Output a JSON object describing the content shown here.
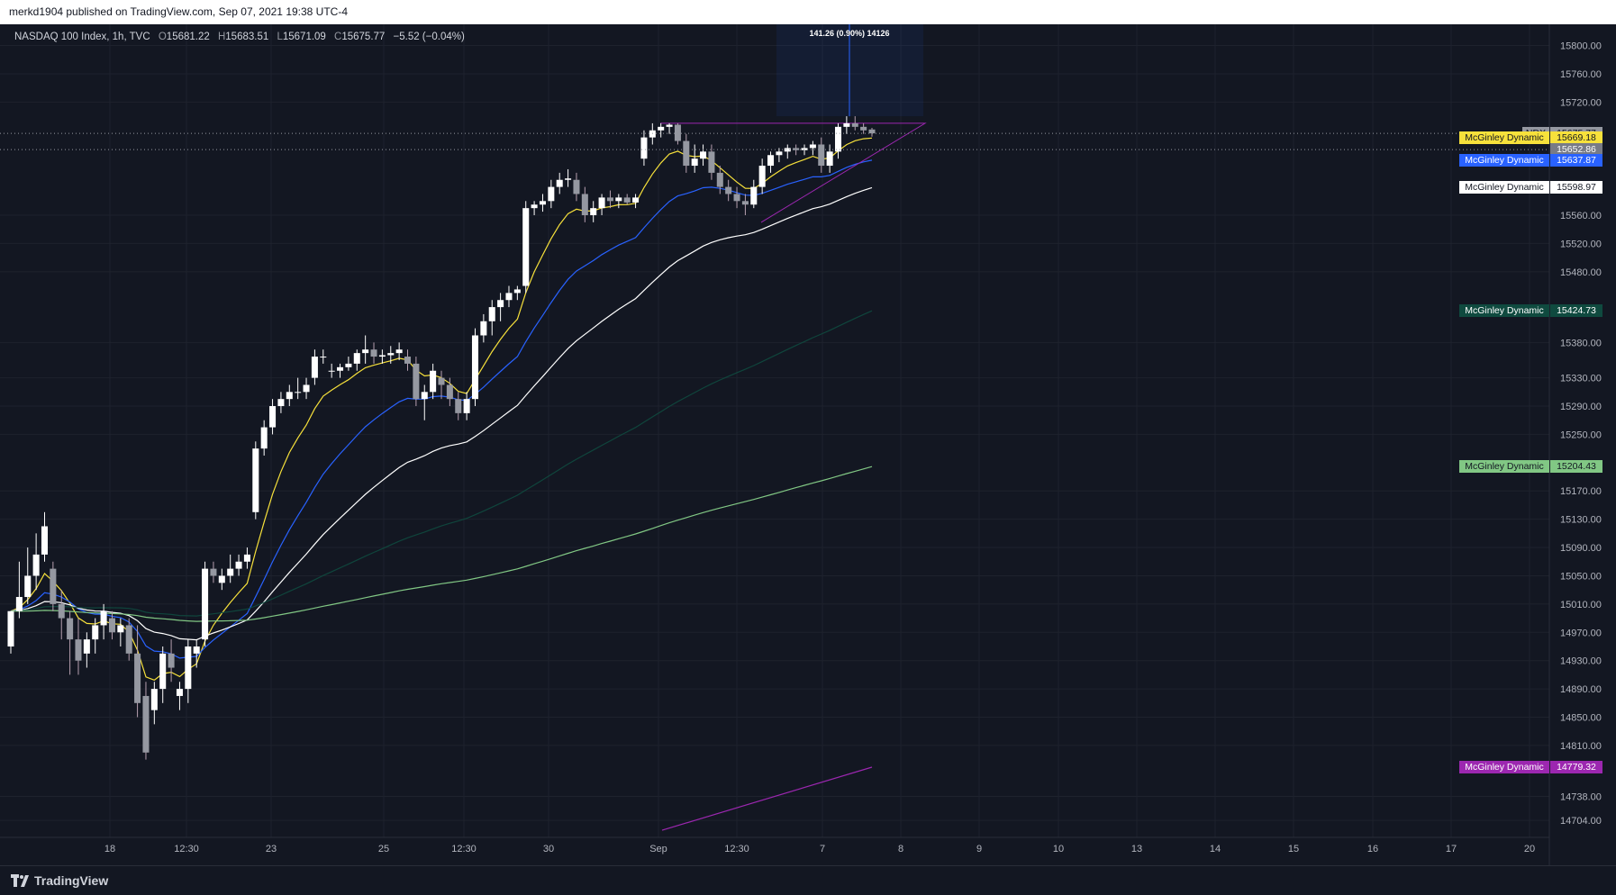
{
  "header": {
    "published_text": "merkd1904 published on TradingView.com, Sep 07, 2021 19:38 UTC-4"
  },
  "legend": {
    "symbol": "NASDAQ 100 Index, 1h, TVC",
    "open_label": "O",
    "open": "15681.22",
    "high_label": "H",
    "high": "15683.51",
    "low_label": "L",
    "low": "15671.09",
    "close_label": "C",
    "close": "15675.77",
    "change": "−5.52 (−0.04%)"
  },
  "measure_label": "141.26 (0.90%) 14126",
  "price_axis": {
    "ticks": [
      "15800.00",
      "15760.00",
      "15720.00",
      "15560.00",
      "15520.00",
      "15480.00",
      "15380.00",
      "15330.00",
      "15290.00",
      "15250.00",
      "15170.00",
      "15130.00",
      "15090.00",
      "15050.00",
      "15010.00",
      "14970.00",
      "14930.00",
      "14890.00",
      "14850.00",
      "14810.00",
      "14738.00",
      "14704.00"
    ]
  },
  "time_axis": {
    "labels": [
      "18",
      "12:30",
      "23",
      "25",
      "12:30",
      "30",
      "Sep",
      "12:30",
      "7",
      "8",
      "9",
      "10",
      "13",
      "14",
      "15",
      "16",
      "17",
      "20"
    ]
  },
  "price_labels": [
    {
      "name": "NDX",
      "value": "15675.77",
      "color": "#9598a1",
      "text_color": "#131722"
    },
    {
      "name": "McGinley Dynamic",
      "value": "15669.18",
      "color": "#f7e13b",
      "text_color": "#131722"
    },
    {
      "name": "",
      "value": "15652.86",
      "color": "#787b86",
      "text_color": "#ffffff"
    },
    {
      "name": "McGinley Dynamic",
      "value": "15637.87",
      "color": "#2962ff",
      "text_color": "#ffffff"
    },
    {
      "name": "McGinley Dynamic",
      "value": "15598.97",
      "color": "#ffffff",
      "text_color": "#131722"
    },
    {
      "name": "McGinley Dynamic",
      "value": "15424.73",
      "color": "#0f4a3f",
      "text_color": "#ffffff"
    },
    {
      "name": "McGinley Dynamic",
      "value": "15204.43",
      "color": "#81c784",
      "text_color": "#131722"
    },
    {
      "name": "McGinley Dynamic",
      "value": "14779.32",
      "color": "#9c27b0",
      "text_color": "#ffffff"
    }
  ],
  "chart_data": {
    "type": "candlestick",
    "symbol": "NDX",
    "interval": "1h",
    "y_range": [
      14680,
      15830
    ],
    "candles": [
      [
        14950,
        15000,
        14940,
        15000
      ],
      [
        15000,
        15070,
        14990,
        15020
      ],
      [
        15020,
        15090,
        15010,
        15050
      ],
      [
        15050,
        15110,
        15030,
        15080
      ],
      [
        15080,
        15140,
        15070,
        15120
      ],
      [
        15060,
        15070,
        15000,
        15010
      ],
      [
        15010,
        15030,
        14960,
        14990
      ],
      [
        14990,
        15000,
        14910,
        14960
      ],
      [
        14960,
        14990,
        14910,
        14930
      ],
      [
        14940,
        14970,
        14920,
        14960
      ],
      [
        14960,
        14990,
        14940,
        14980
      ],
      [
        14980,
        15010,
        14960,
        15000
      ],
      [
        14990,
        15000,
        14960,
        14970
      ],
      [
        14970,
        14990,
        14950,
        14980
      ],
      [
        14980,
        14990,
        14930,
        14940
      ],
      [
        14940,
        14980,
        14850,
        14870
      ],
      [
        14880,
        14900,
        14790,
        14800
      ],
      [
        14860,
        14900,
        14840,
        14890
      ],
      [
        14890,
        14950,
        14870,
        14940
      ],
      [
        14940,
        14960,
        14900,
        14920
      ],
      [
        14880,
        14900,
        14860,
        14890
      ],
      [
        14890,
        14960,
        14870,
        14950
      ],
      [
        14940,
        14960,
        14920,
        14950
      ],
      [
        14960,
        15070,
        14950,
        15060
      ],
      [
        15060,
        15070,
        15040,
        15050
      ],
      [
        15040,
        15060,
        15030,
        15050
      ],
      [
        15050,
        15080,
        15040,
        15060
      ],
      [
        15060,
        15080,
        15050,
        15070
      ],
      [
        15070,
        15090,
        15060,
        15080
      ],
      [
        15140,
        15240,
        15130,
        15230
      ],
      [
        15230,
        15270,
        15220,
        15260
      ],
      [
        15260,
        15300,
        15250,
        15290
      ],
      [
        15290,
        15310,
        15280,
        15300
      ],
      [
        15300,
        15320,
        15290,
        15310
      ],
      [
        15310,
        15330,
        15300,
        15310
      ],
      [
        15310,
        15330,
        15300,
        15320
      ],
      [
        15330,
        15370,
        15320,
        15360
      ],
      [
        15360,
        15370,
        15350,
        15360
      ],
      [
        15340,
        15350,
        15330,
        15340
      ],
      [
        15340,
        15350,
        15330,
        15345
      ],
      [
        15345,
        15360,
        15340,
        15350
      ],
      [
        15350,
        15370,
        15340,
        15365
      ],
      [
        15365,
        15390,
        15350,
        15370
      ],
      [
        15370,
        15380,
        15350,
        15360
      ],
      [
        15360,
        15370,
        15350,
        15362
      ],
      [
        15362,
        15375,
        15350,
        15365
      ],
      [
        15365,
        15380,
        15355,
        15370
      ],
      [
        15360,
        15370,
        15340,
        15350
      ],
      [
        15350,
        15360,
        15290,
        15300
      ],
      [
        15300,
        15320,
        15270,
        15310
      ],
      [
        15310,
        15350,
        15300,
        15340
      ],
      [
        15330,
        15340,
        15300,
        15320
      ],
      [
        15320,
        15330,
        15290,
        15300
      ],
      [
        15300,
        15310,
        15270,
        15280
      ],
      [
        15280,
        15310,
        15270,
        15300
      ],
      [
        15300,
        15400,
        15290,
        15390
      ],
      [
        15390,
        15420,
        15380,
        15410
      ],
      [
        15410,
        15440,
        15390,
        15430
      ],
      [
        15430,
        15450,
        15410,
        15440
      ],
      [
        15440,
        15460,
        15430,
        15450
      ],
      [
        15450,
        15460,
        15440,
        15455
      ],
      [
        15460,
        15580,
        15450,
        15570
      ],
      [
        15570,
        15580,
        15560,
        15575
      ],
      [
        15575,
        15590,
        15565,
        15580
      ],
      [
        15580,
        15610,
        15570,
        15600
      ],
      [
        15600,
        15620,
        15590,
        15610
      ],
      [
        15610,
        15625,
        15600,
        15612
      ],
      [
        15610,
        15620,
        15580,
        15590
      ],
      [
        15590,
        15600,
        15550,
        15560
      ],
      [
        15560,
        15580,
        15550,
        15570
      ],
      [
        15570,
        15590,
        15560,
        15585
      ],
      [
        15585,
        15595,
        15570,
        15580
      ],
      [
        15580,
        15590,
        15570,
        15585
      ],
      [
        15585,
        15590,
        15575,
        15578
      ],
      [
        15578,
        15590,
        15570,
        15585
      ],
      [
        15640,
        15680,
        15630,
        15670
      ],
      [
        15670,
        15690,
        15660,
        15680
      ],
      [
        15680,
        15690,
        15670,
        15685
      ],
      [
        15685,
        15690,
        15675,
        15688
      ],
      [
        15688,
        15690,
        15660,
        15665
      ],
      [
        15665,
        15675,
        15620,
        15630
      ],
      [
        15630,
        15660,
        15620,
        15640
      ],
      [
        15640,
        15660,
        15630,
        15650
      ],
      [
        15650,
        15660,
        15610,
        15620
      ],
      [
        15620,
        15630,
        15590,
        15600
      ],
      [
        15600,
        15610,
        15580,
        15590
      ],
      [
        15590,
        15600,
        15570,
        15580
      ],
      [
        15580,
        15590,
        15560,
        15575
      ],
      [
        15575,
        15610,
        15570,
        15600
      ],
      [
        15600,
        15640,
        15590,
        15630
      ],
      [
        15630,
        15650,
        15620,
        15645
      ],
      [
        15645,
        15655,
        15635,
        15650
      ],
      [
        15650,
        15660,
        15640,
        15655
      ],
      [
        15655,
        15660,
        15645,
        15652
      ],
      [
        15652,
        15660,
        15645,
        15655
      ],
      [
        15655,
        15665,
        15645,
        15660
      ],
      [
        15660,
        15670,
        15620,
        15630
      ],
      [
        15630,
        15660,
        15620,
        15650
      ],
      [
        15650,
        15690,
        15640,
        15685
      ],
      [
        15685,
        15700,
        15675,
        15690
      ],
      [
        15690,
        15700,
        15680,
        15685
      ],
      [
        15685,
        15690,
        15675,
        15680
      ],
      [
        15681.22,
        15683.51,
        15671.09,
        15675.77
      ]
    ],
    "indicators": [
      {
        "name": "McGinley Dynamic",
        "color": "#f7e13b",
        "last": 15669.18
      },
      {
        "name": "McGinley Dynamic",
        "color": "#2962ff",
        "last": 15637.87
      },
      {
        "name": "McGinley Dynamic",
        "color": "#ffffff",
        "last": 15598.97
      },
      {
        "name": "McGinley Dynamic",
        "color": "#0f4a3f",
        "last": 15424.73
      },
      {
        "name": "McGinley Dynamic",
        "color": "#81c784",
        "last": 15204.43
      },
      {
        "name": "McGinley Dynamic",
        "color": "#9c27b0",
        "last": 14779.32
      }
    ],
    "grid": true
  },
  "footer": {
    "logo_text": "TradingView"
  }
}
